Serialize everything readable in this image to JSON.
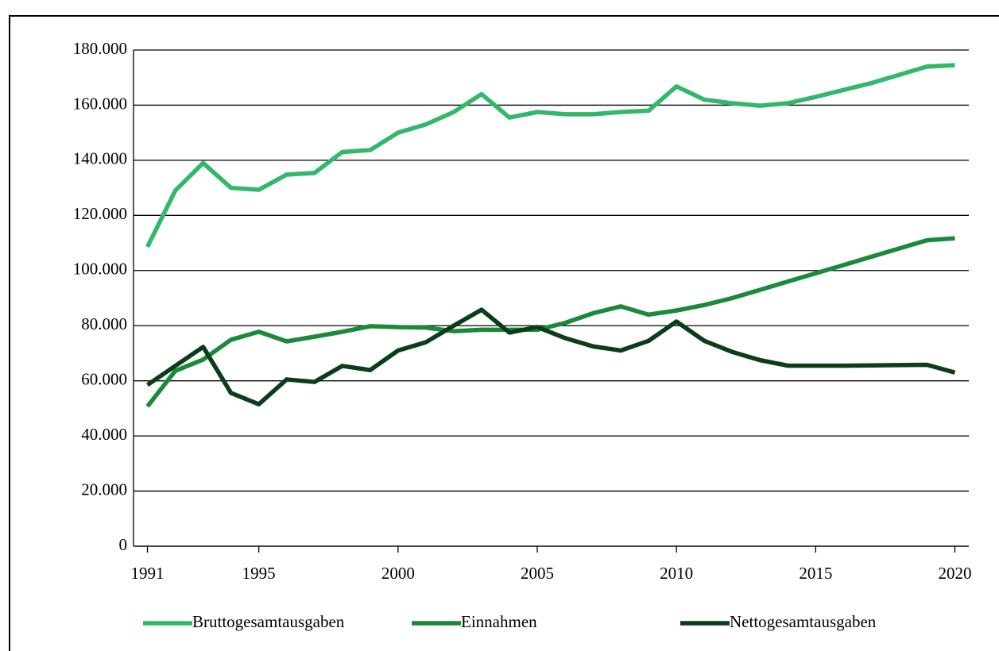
{
  "chart_data": {
    "type": "line",
    "x": [
      1991,
      1992,
      1993,
      1994,
      1995,
      1996,
      1997,
      1998,
      1999,
      2000,
      2001,
      2002,
      2003,
      2004,
      2005,
      2006,
      2007,
      2008,
      2009,
      2010,
      2011,
      2012,
      2013,
      2014,
      2015,
      2016,
      2017,
      2018,
      2019,
      2020
    ],
    "series": [
      {
        "name": "Bruttogesamtausgaben",
        "color": "#33b86b",
        "values": [
          108600,
          129000,
          139000,
          130000,
          129300,
          134800,
          135400,
          143000,
          143700,
          150000,
          153000,
          157500,
          164000,
          155500,
          157500,
          156700,
          156700,
          157500,
          158000,
          166800,
          162000,
          160700,
          159800,
          160700,
          163000,
          165500,
          168000,
          171000,
          174000,
          174500
        ]
      },
      {
        "name": "Einnahmen",
        "color": "#1a8a3a",
        "values": [
          50700,
          63600,
          67700,
          74900,
          77800,
          74300,
          76000,
          77800,
          79800,
          79500,
          79300,
          78000,
          78500,
          78500,
          78500,
          81000,
          84500,
          87000,
          84000,
          85500,
          87500,
          90000,
          93000,
          96000,
          99000,
          102000,
          105000,
          108000,
          111000,
          111700
        ]
      },
      {
        "name": "Nettogesamtausgaben",
        "color": "#0b3d1a",
        "values": [
          58500,
          65400,
          72300,
          55600,
          51500,
          60500,
          59600,
          65400,
          63900,
          71000,
          74000,
          80000,
          85800,
          77500,
          79500,
          75500,
          72500,
          71000,
          74500,
          81500,
          74500,
          70500,
          67500,
          65500,
          65500,
          65500,
          65600,
          65700,
          65800,
          63000
        ]
      }
    ],
    "xlim": [
      1990.5,
      2020.5
    ],
    "xticks": [
      1991,
      1995,
      2000,
      2005,
      2010,
      2015,
      2020
    ],
    "ylim": [
      0,
      180000
    ],
    "yticks": [
      0,
      {
        "value": 20000,
        "label": "20.000"
      },
      {
        "value": 40000,
        "label": "40.000"
      },
      {
        "value": 60000,
        "label": "60.000"
      },
      {
        "value": 80000,
        "label": "80.000"
      },
      {
        "value": 100000,
        "label": "100.000"
      },
      {
        "value": 120000,
        "label": "120.000"
      },
      {
        "value": 140000,
        "label": "140.000"
      },
      {
        "value": 160000,
        "label": "160.000"
      },
      {
        "value": 180000,
        "label": "180.000"
      }
    ],
    "grid": true,
    "legend": "bottom"
  }
}
